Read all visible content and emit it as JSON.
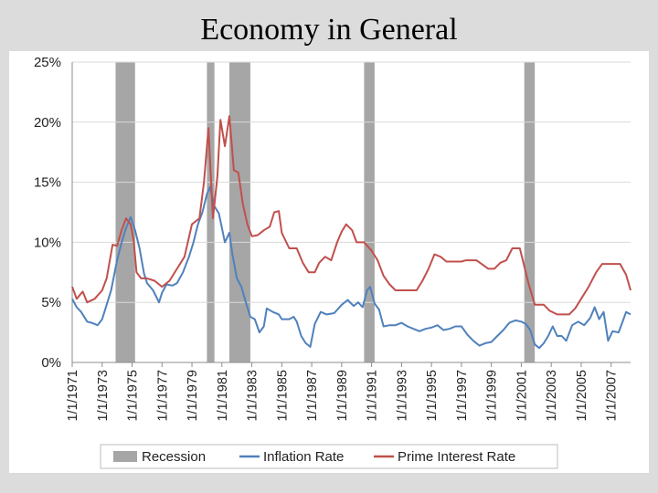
{
  "title": "Economy in General",
  "chart_data": {
    "type": "line",
    "title": "Economy in General",
    "xlabel": "",
    "ylabel": "",
    "xlim": [
      1971,
      2008.3
    ],
    "ylim": [
      0,
      25
    ],
    "y_ticks": [
      0,
      5,
      10,
      15,
      20,
      25
    ],
    "y_tick_labels": [
      "0%",
      "5%",
      "10%",
      "15%",
      "20%",
      "25%"
    ],
    "x_ticks": [
      1971,
      1973,
      1975,
      1977,
      1979,
      1981,
      1983,
      1985,
      1987,
      1989,
      1991,
      1993,
      1995,
      1997,
      1999,
      2001,
      2003,
      2005,
      2007
    ],
    "x_tick_labels": [
      "1/1/1971",
      "1/1/1973",
      "1/1/1975",
      "1/1/1977",
      "1/1/1979",
      "1/1/1981",
      "1/1/1983",
      "1/1/1985",
      "1/1/1987",
      "1/1/1989",
      "1/1/1991",
      "1/1/1993",
      "1/1/1995",
      "1/1/1997",
      "1/1/1999",
      "1/1/2001",
      "1/1/2003",
      "1/1/2005",
      "1/1/2007"
    ],
    "legend": {
      "position": "bottom",
      "entries": [
        {
          "label": "Recession",
          "type": "patch",
          "color": "#a6a6a6"
        },
        {
          "label": "Inflation Rate",
          "type": "line",
          "color": "#4f81bd"
        },
        {
          "label": "Prime Interest Rate",
          "type": "line",
          "color": "#c0504d"
        }
      ]
    },
    "recessions": [
      {
        "start": 1973.9,
        "end": 1975.2
      },
      {
        "start": 1980.0,
        "end": 1980.5
      },
      {
        "start": 1981.5,
        "end": 1982.9
      },
      {
        "start": 1990.5,
        "end": 1991.2
      },
      {
        "start": 2001.2,
        "end": 2001.9
      }
    ],
    "series": [
      {
        "name": "Inflation Rate",
        "color": "#4f81bd",
        "points": [
          [
            1971.0,
            5.3
          ],
          [
            1971.3,
            4.6
          ],
          [
            1971.6,
            4.2
          ],
          [
            1972.0,
            3.4
          ],
          [
            1972.3,
            3.3
          ],
          [
            1972.7,
            3.1
          ],
          [
            1973.0,
            3.6
          ],
          [
            1973.3,
            4.8
          ],
          [
            1973.6,
            6.0
          ],
          [
            1974.0,
            8.5
          ],
          [
            1974.3,
            10.0
          ],
          [
            1974.6,
            11.2
          ],
          [
            1974.9,
            12.1
          ],
          [
            1975.2,
            11.0
          ],
          [
            1975.5,
            9.5
          ],
          [
            1975.8,
            7.4
          ],
          [
            1976.0,
            6.6
          ],
          [
            1976.4,
            6.0
          ],
          [
            1976.8,
            5.0
          ],
          [
            1977.0,
            5.8
          ],
          [
            1977.3,
            6.5
          ],
          [
            1977.7,
            6.4
          ],
          [
            1978.0,
            6.6
          ],
          [
            1978.4,
            7.5
          ],
          [
            1978.8,
            8.8
          ],
          [
            1979.1,
            10.0
          ],
          [
            1979.4,
            11.5
          ],
          [
            1979.7,
            12.5
          ],
          [
            1980.0,
            14.0
          ],
          [
            1980.2,
            14.6
          ],
          [
            1980.5,
            13.0
          ],
          [
            1980.8,
            12.4
          ],
          [
            1981.0,
            11.2
          ],
          [
            1981.2,
            10.0
          ],
          [
            1981.5,
            10.8
          ],
          [
            1981.7,
            9.0
          ],
          [
            1982.0,
            7.0
          ],
          [
            1982.3,
            6.3
          ],
          [
            1982.6,
            5.0
          ],
          [
            1982.9,
            3.8
          ],
          [
            1983.2,
            3.6
          ],
          [
            1983.5,
            2.5
          ],
          [
            1983.8,
            3.0
          ],
          [
            1984.0,
            4.5
          ],
          [
            1984.4,
            4.2
          ],
          [
            1984.8,
            4.0
          ],
          [
            1985.0,
            3.6
          ],
          [
            1985.5,
            3.6
          ],
          [
            1985.8,
            3.8
          ],
          [
            1986.0,
            3.4
          ],
          [
            1986.3,
            2.2
          ],
          [
            1986.6,
            1.6
          ],
          [
            1986.9,
            1.3
          ],
          [
            1987.2,
            3.2
          ],
          [
            1987.6,
            4.2
          ],
          [
            1988.0,
            4.0
          ],
          [
            1988.5,
            4.1
          ],
          [
            1989.0,
            4.8
          ],
          [
            1989.4,
            5.2
          ],
          [
            1989.8,
            4.7
          ],
          [
            1990.1,
            5.0
          ],
          [
            1990.4,
            4.6
          ],
          [
            1990.7,
            6.0
          ],
          [
            1990.9,
            6.3
          ],
          [
            1991.2,
            4.9
          ],
          [
            1991.5,
            4.4
          ],
          [
            1991.8,
            3.0
          ],
          [
            1992.2,
            3.1
          ],
          [
            1992.6,
            3.1
          ],
          [
            1993.0,
            3.3
          ],
          [
            1993.4,
            3.0
          ],
          [
            1993.8,
            2.8
          ],
          [
            1994.2,
            2.6
          ],
          [
            1994.6,
            2.8
          ],
          [
            1995.0,
            2.9
          ],
          [
            1995.4,
            3.1
          ],
          [
            1995.8,
            2.7
          ],
          [
            1996.2,
            2.8
          ],
          [
            1996.6,
            3.0
          ],
          [
            1997.0,
            3.0
          ],
          [
            1997.4,
            2.3
          ],
          [
            1997.8,
            1.8
          ],
          [
            1998.2,
            1.4
          ],
          [
            1998.6,
            1.6
          ],
          [
            1999.0,
            1.7
          ],
          [
            1999.4,
            2.2
          ],
          [
            1999.8,
            2.7
          ],
          [
            2000.2,
            3.3
          ],
          [
            2000.6,
            3.5
          ],
          [
            2001.0,
            3.4
          ],
          [
            2001.3,
            3.2
          ],
          [
            2001.6,
            2.7
          ],
          [
            2001.9,
            1.5
          ],
          [
            2002.2,
            1.2
          ],
          [
            2002.5,
            1.6
          ],
          [
            2002.8,
            2.2
          ],
          [
            2003.1,
            3.0
          ],
          [
            2003.4,
            2.2
          ],
          [
            2003.7,
            2.2
          ],
          [
            2004.0,
            1.8
          ],
          [
            2004.4,
            3.1
          ],
          [
            2004.8,
            3.4
          ],
          [
            2005.2,
            3.1
          ],
          [
            2005.6,
            3.7
          ],
          [
            2005.9,
            4.6
          ],
          [
            2006.2,
            3.6
          ],
          [
            2006.5,
            4.2
          ],
          [
            2006.8,
            1.8
          ],
          [
            2007.1,
            2.6
          ],
          [
            2007.5,
            2.5
          ],
          [
            2007.8,
            3.5
          ],
          [
            2008.0,
            4.2
          ],
          [
            2008.3,
            4.0
          ]
        ]
      },
      {
        "name": "Prime Interest Rate",
        "color": "#c0504d",
        "points": [
          [
            1971.0,
            6.3
          ],
          [
            1971.3,
            5.3
          ],
          [
            1971.7,
            5.9
          ],
          [
            1972.0,
            5.0
          ],
          [
            1972.5,
            5.3
          ],
          [
            1973.0,
            6.0
          ],
          [
            1973.3,
            7.0
          ],
          [
            1973.7,
            9.8
          ],
          [
            1974.0,
            9.7
          ],
          [
            1974.3,
            11.0
          ],
          [
            1974.6,
            12.0
          ],
          [
            1974.9,
            11.5
          ],
          [
            1975.1,
            10.2
          ],
          [
            1975.3,
            7.5
          ],
          [
            1975.6,
            7.0
          ],
          [
            1976.0,
            7.0
          ],
          [
            1976.5,
            6.8
          ],
          [
            1977.0,
            6.3
          ],
          [
            1977.5,
            6.8
          ],
          [
            1978.0,
            7.8
          ],
          [
            1978.5,
            8.8
          ],
          [
            1979.0,
            11.5
          ],
          [
            1979.5,
            12.0
          ],
          [
            1979.8,
            15.0
          ],
          [
            1980.1,
            19.5
          ],
          [
            1980.4,
            12.0
          ],
          [
            1980.7,
            15.5
          ],
          [
            1980.9,
            20.2
          ],
          [
            1981.2,
            18.0
          ],
          [
            1981.5,
            20.5
          ],
          [
            1981.8,
            16.0
          ],
          [
            1982.1,
            15.8
          ],
          [
            1982.4,
            13.2
          ],
          [
            1982.7,
            11.5
          ],
          [
            1983.0,
            10.5
          ],
          [
            1983.4,
            10.6
          ],
          [
            1983.8,
            11.0
          ],
          [
            1984.2,
            11.3
          ],
          [
            1984.5,
            12.5
          ],
          [
            1984.8,
            12.6
          ],
          [
            1985.0,
            10.8
          ],
          [
            1985.5,
            9.5
          ],
          [
            1986.0,
            9.5
          ],
          [
            1986.4,
            8.3
          ],
          [
            1986.8,
            7.5
          ],
          [
            1987.2,
            7.5
          ],
          [
            1987.5,
            8.3
          ],
          [
            1987.9,
            8.8
          ],
          [
            1988.3,
            8.5
          ],
          [
            1988.7,
            10.0
          ],
          [
            1989.0,
            10.9
          ],
          [
            1989.3,
            11.5
          ],
          [
            1989.7,
            11.0
          ],
          [
            1990.0,
            10.0
          ],
          [
            1990.5,
            10.0
          ],
          [
            1991.0,
            9.3
          ],
          [
            1991.4,
            8.5
          ],
          [
            1991.8,
            7.2
          ],
          [
            1992.2,
            6.5
          ],
          [
            1992.6,
            6.0
          ],
          [
            1993.0,
            6.0
          ],
          [
            1994.0,
            6.0
          ],
          [
            1994.4,
            6.8
          ],
          [
            1994.8,
            7.8
          ],
          [
            1995.2,
            9.0
          ],
          [
            1995.6,
            8.8
          ],
          [
            1996.0,
            8.4
          ],
          [
            1997.0,
            8.4
          ],
          [
            1997.3,
            8.5
          ],
          [
            1998.0,
            8.5
          ],
          [
            1998.8,
            7.8
          ],
          [
            1999.2,
            7.8
          ],
          [
            1999.6,
            8.3
          ],
          [
            2000.0,
            8.5
          ],
          [
            2000.4,
            9.5
          ],
          [
            2000.9,
            9.5
          ],
          [
            2001.2,
            8.0
          ],
          [
            2001.5,
            6.5
          ],
          [
            2001.9,
            4.8
          ],
          [
            2002.5,
            4.8
          ],
          [
            2002.9,
            4.3
          ],
          [
            2003.4,
            4.0
          ],
          [
            2004.2,
            4.0
          ],
          [
            2004.6,
            4.5
          ],
          [
            2005.0,
            5.3
          ],
          [
            2005.5,
            6.3
          ],
          [
            2006.0,
            7.5
          ],
          [
            2006.4,
            8.2
          ],
          [
            2007.0,
            8.2
          ],
          [
            2007.6,
            8.2
          ],
          [
            2008.0,
            7.3
          ],
          [
            2008.3,
            6.0
          ]
        ]
      }
    ]
  }
}
